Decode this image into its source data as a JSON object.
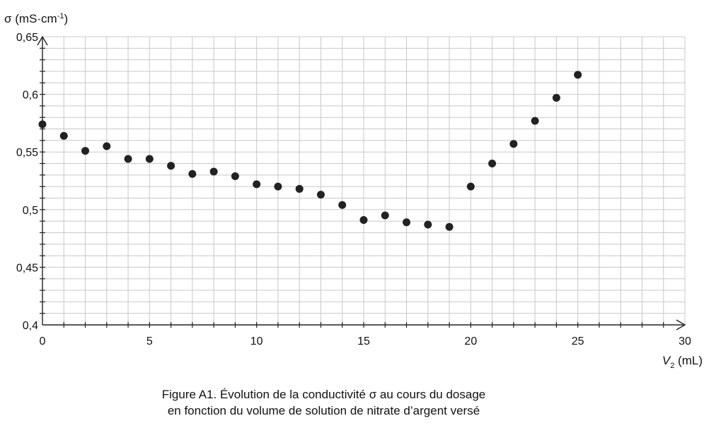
{
  "chart_data": {
    "type": "scatter",
    "ylabel": "σ (mS·cm",
    "ylabel_sup": "-1",
    "ylabel_end": ")",
    "xlabel_symbol": "V",
    "xlabel_sub": "2",
    "xlabel_unit": " (mL)",
    "xlim": [
      0,
      30
    ],
    "ylim": [
      0.4,
      0.65
    ],
    "x_ticks": [
      0,
      5,
      10,
      15,
      20,
      25,
      30
    ],
    "x_tick_labels": [
      "0",
      "5",
      "10",
      "15",
      "20",
      "25",
      "30"
    ],
    "y_ticks": [
      0.4,
      0.45,
      0.5,
      0.55,
      0.6,
      0.65
    ],
    "y_tick_labels": [
      "0,4",
      "0,45",
      "0,5",
      "0,55",
      "0,6",
      "0,65"
    ],
    "grid": true,
    "marker_color": "#222222",
    "series": [
      {
        "points": [
          {
            "x": 0,
            "y": 0.574
          },
          {
            "x": 1,
            "y": 0.564
          },
          {
            "x": 2,
            "y": 0.551
          },
          {
            "x": 3,
            "y": 0.555
          },
          {
            "x": 4,
            "y": 0.544
          },
          {
            "x": 5,
            "y": 0.544
          },
          {
            "x": 6,
            "y": 0.538
          },
          {
            "x": 7,
            "y": 0.531
          },
          {
            "x": 8,
            "y": 0.533
          },
          {
            "x": 9,
            "y": 0.529
          },
          {
            "x": 10,
            "y": 0.522
          },
          {
            "x": 11,
            "y": 0.52
          },
          {
            "x": 12,
            "y": 0.518
          },
          {
            "x": 13,
            "y": 0.513
          },
          {
            "x": 14,
            "y": 0.504
          },
          {
            "x": 15,
            "y": 0.491
          },
          {
            "x": 16,
            "y": 0.495
          },
          {
            "x": 17,
            "y": 0.489
          },
          {
            "x": 18,
            "y": 0.487
          },
          {
            "x": 19,
            "y": 0.485
          },
          {
            "x": 20,
            "y": 0.52
          },
          {
            "x": 21,
            "y": 0.54
          },
          {
            "x": 22,
            "y": 0.557
          },
          {
            "x": 23,
            "y": 0.577
          },
          {
            "x": 24,
            "y": 0.597
          },
          {
            "x": 25,
            "y": 0.617
          }
        ]
      }
    ]
  },
  "caption": {
    "line1": "Figure A1. Évolution de la conductivité σ au cours du dosage",
    "line2": "en fonction du volume de solution de nitrate d’argent versé"
  }
}
